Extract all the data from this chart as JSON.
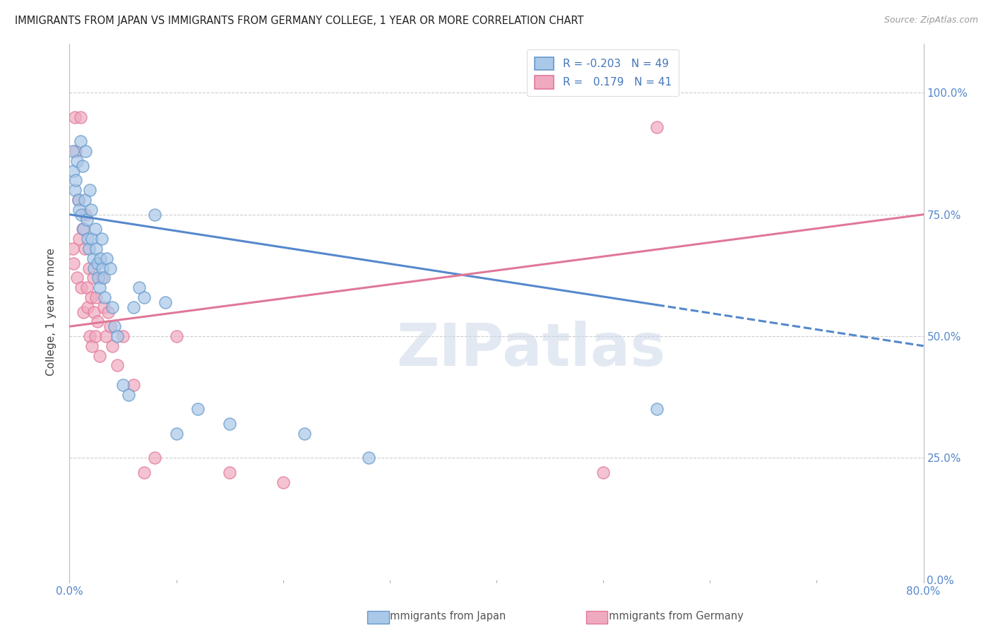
{
  "title": "IMMIGRANTS FROM JAPAN VS IMMIGRANTS FROM GERMANY COLLEGE, 1 YEAR OR MORE CORRELATION CHART",
  "source": "Source: ZipAtlas.com",
  "ylabel": "College, 1 year or more",
  "x_tick_values": [
    0,
    10,
    20,
    30,
    40,
    50,
    60,
    70,
    80
  ],
  "x_tick_labels_show": {
    "0": "0.0%",
    "80": "80.0%"
  },
  "y_tick_values": [
    0,
    25,
    50,
    75,
    100
  ],
  "y_tick_labels_right": [
    "0.0%",
    "25.0%",
    "50.0%",
    "75.0%",
    "100.0%"
  ],
  "xlim": [
    0,
    80
  ],
  "ylim": [
    0,
    110
  ],
  "japan_color": "#aac8e8",
  "germany_color": "#f0aac0",
  "japan_edge_color": "#6699cc",
  "germany_edge_color": "#e07898",
  "japan_line_color": "#5588cc",
  "germany_line_color": "#e07898",
  "watermark": "ZIPatlas",
  "japan_trend_start_y": 75,
  "japan_trend_end_y": 48,
  "japan_solid_end_x": 55,
  "germany_trend_start_y": 52,
  "germany_trend_end_y": 75,
  "japan_scatter_x": [
    0.3,
    0.4,
    0.5,
    0.6,
    0.7,
    0.8,
    0.9,
    1.0,
    1.1,
    1.2,
    1.3,
    1.4,
    1.5,
    1.6,
    1.7,
    1.8,
    1.9,
    2.0,
    2.1,
    2.2,
    2.3,
    2.4,
    2.5,
    2.6,
    2.7,
    2.8,
    2.9,
    3.0,
    3.1,
    3.2,
    3.3,
    3.5,
    3.8,
    4.0,
    4.2,
    4.5,
    5.0,
    5.5,
    6.0,
    6.5,
    7.0,
    8.0,
    9.0,
    10.0,
    12.0,
    15.0,
    22.0,
    28.0,
    55.0
  ],
  "japan_scatter_y": [
    88,
    84,
    80,
    82,
    86,
    78,
    76,
    90,
    75,
    85,
    72,
    78,
    88,
    74,
    70,
    68,
    80,
    76,
    70,
    66,
    64,
    72,
    68,
    65,
    62,
    60,
    66,
    70,
    64,
    62,
    58,
    66,
    64,
    56,
    52,
    50,
    40,
    38,
    56,
    60,
    58,
    75,
    57,
    30,
    35,
    32,
    30,
    25,
    35
  ],
  "germany_scatter_x": [
    0.3,
    0.4,
    0.5,
    0.6,
    0.7,
    0.8,
    0.9,
    1.0,
    1.1,
    1.2,
    1.3,
    1.4,
    1.5,
    1.6,
    1.7,
    1.8,
    1.9,
    2.0,
    2.1,
    2.2,
    2.3,
    2.4,
    2.5,
    2.6,
    2.8,
    3.0,
    3.2,
    3.4,
    3.6,
    3.8,
    4.0,
    4.5,
    5.0,
    6.0,
    7.0,
    8.0,
    10.0,
    15.0,
    20.0,
    50.0,
    55.0
  ],
  "germany_scatter_y": [
    68,
    65,
    95,
    88,
    62,
    78,
    70,
    95,
    60,
    72,
    55,
    68,
    75,
    60,
    56,
    64,
    50,
    58,
    48,
    62,
    55,
    50,
    58,
    53,
    46,
    62,
    56,
    50,
    55,
    52,
    48,
    44,
    50,
    40,
    22,
    25,
    50,
    22,
    20,
    22,
    93
  ]
}
